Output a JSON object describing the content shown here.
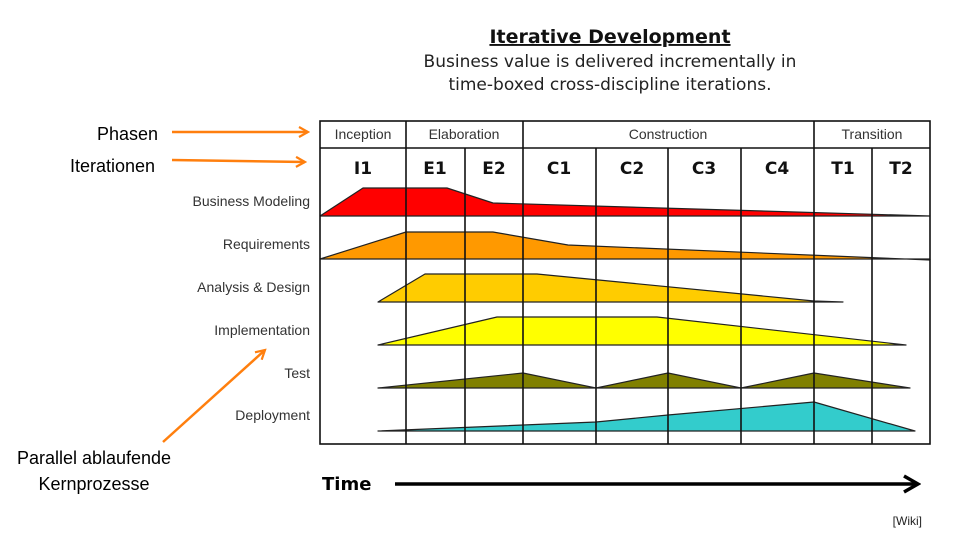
{
  "title": "Iterative Development",
  "subtitle_line1": "Business value is delivered incrementally in",
  "subtitle_line2": "time-boxed cross-discipline iterations.",
  "annotations": {
    "phases": "Phasen",
    "iterations": "Iterationen",
    "parallel_line1": "Parallel ablaufende",
    "parallel_line2": "Kernprozesse",
    "arrow_color": "#ff7f0e"
  },
  "phases": [
    "Inception",
    "Elaboration",
    "Construction",
    "Transition"
  ],
  "iterations": [
    "I1",
    "E1",
    "E2",
    "C1",
    "C2",
    "C3",
    "C4",
    "T1",
    "T2"
  ],
  "disciplines": [
    {
      "label": "Business Modeling",
      "color": "#ff0000"
    },
    {
      "label": "Requirements",
      "color": "#ff9900"
    },
    {
      "label": "Analysis & Design",
      "color": "#ffcc00"
    },
    {
      "label": "Implementation",
      "color": "#ffff00"
    },
    {
      "label": "Test",
      "color": "#808000"
    },
    {
      "label": "Deployment",
      "color": "#33cccc"
    }
  ],
  "time_label": "Time",
  "source": "[Wiki]"
}
